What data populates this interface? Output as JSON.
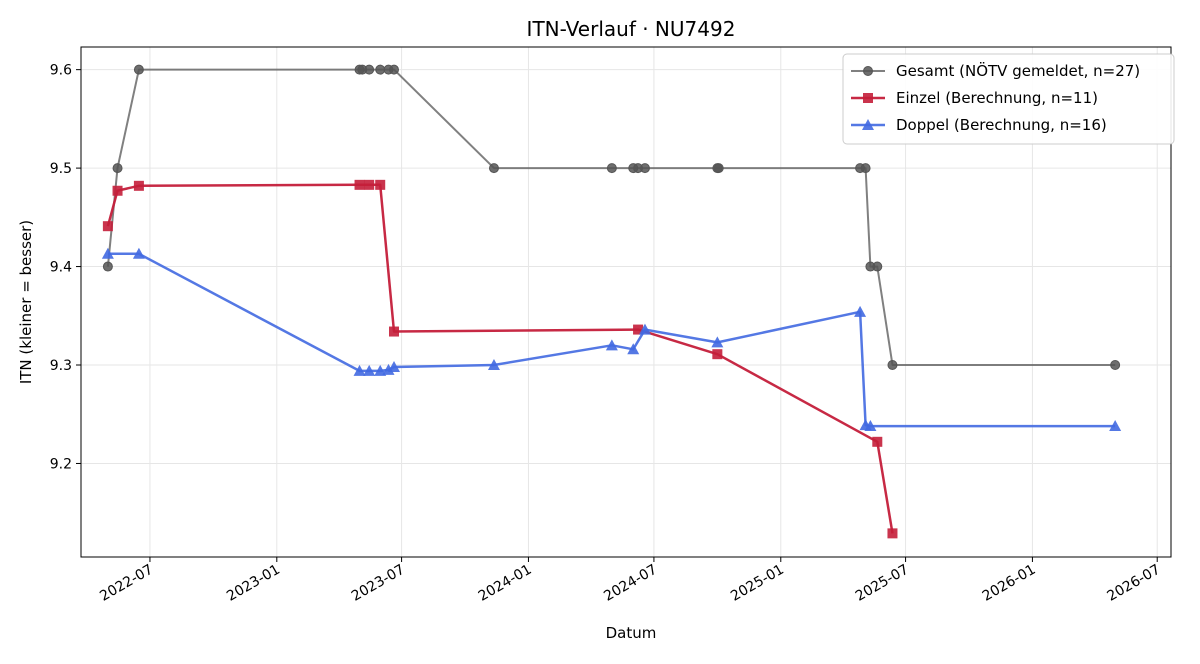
{
  "chart_data": {
    "type": "line",
    "title": "ITN-Verlauf · NU7492",
    "xlabel": "Datum",
    "ylabel": "ITN  (kleiner = besser)",
    "x_axis_type": "date",
    "xlim": [
      "2022-03-23",
      "2026-07-21"
    ],
    "ylim": [
      9.105,
      9.623
    ],
    "x_ticks": [
      "2022-07",
      "2023-01",
      "2023-07",
      "2024-01",
      "2024-07",
      "2025-01",
      "2025-07",
      "2026-01",
      "2026-07"
    ],
    "y_ticks": [
      "9.2",
      "9.3",
      "9.4",
      "9.5",
      "9.6"
    ],
    "grid": true,
    "legend_position": "top-right",
    "series": [
      {
        "name": "Gesamt (NÖTV gemeldet, n=27)",
        "color": "#555555",
        "marker": "circle",
        "points": [
          {
            "x": "2022-05-01",
            "y": 9.4
          },
          {
            "x": "2022-05-15",
            "y": 9.5
          },
          {
            "x": "2022-06-15",
            "y": 9.6
          },
          {
            "x": "2023-05-01",
            "y": 9.6
          },
          {
            "x": "2023-05-05",
            "y": 9.6
          },
          {
            "x": "2023-05-15",
            "y": 9.6
          },
          {
            "x": "2023-05-31",
            "y": 9.6
          },
          {
            "x": "2023-06-12",
            "y": 9.6
          },
          {
            "x": "2023-06-20",
            "y": 9.6
          },
          {
            "x": "2023-11-12",
            "y": 9.5
          },
          {
            "x": "2024-05-01",
            "y": 9.5
          },
          {
            "x": "2024-06-01",
            "y": 9.5
          },
          {
            "x": "2024-06-08",
            "y": 9.5
          },
          {
            "x": "2024-06-18",
            "y": 9.5
          },
          {
            "x": "2024-10-01",
            "y": 9.5
          },
          {
            "x": "2024-10-03",
            "y": 9.5
          },
          {
            "x": "2025-04-26",
            "y": 9.5
          },
          {
            "x": "2025-05-04",
            "y": 9.5
          },
          {
            "x": "2025-05-11",
            "y": 9.4
          },
          {
            "x": "2025-05-21",
            "y": 9.4
          },
          {
            "x": "2025-06-12",
            "y": 9.3
          },
          {
            "x": "2026-05-01",
            "y": 9.3
          }
        ]
      },
      {
        "name": "Einzel (Berechnung, n=11)",
        "color": "#c41e3a",
        "marker": "square",
        "points": [
          {
            "x": "2022-05-01",
            "y": 9.441
          },
          {
            "x": "2022-05-15",
            "y": 9.477
          },
          {
            "x": "2022-06-15",
            "y": 9.482
          },
          {
            "x": "2023-05-01",
            "y": 9.483
          },
          {
            "x": "2023-05-15",
            "y": 9.483
          },
          {
            "x": "2023-05-31",
            "y": 9.483
          },
          {
            "x": "2023-06-20",
            "y": 9.334
          },
          {
            "x": "2024-06-08",
            "y": 9.336
          },
          {
            "x": "2024-10-01",
            "y": 9.311
          },
          {
            "x": "2025-05-21",
            "y": 9.222
          },
          {
            "x": "2025-06-12",
            "y": 9.129
          }
        ]
      },
      {
        "name": "Doppel (Berechnung, n=16)",
        "color": "#4169e1",
        "marker": "triangle",
        "points": [
          {
            "x": "2022-05-01",
            "y": 9.413
          },
          {
            "x": "2022-06-15",
            "y": 9.413
          },
          {
            "x": "2023-05-01",
            "y": 9.294
          },
          {
            "x": "2023-05-15",
            "y": 9.294
          },
          {
            "x": "2023-05-31",
            "y": 9.294
          },
          {
            "x": "2023-06-12",
            "y": 9.295
          },
          {
            "x": "2023-06-20",
            "y": 9.298
          },
          {
            "x": "2023-11-12",
            "y": 9.3
          },
          {
            "x": "2024-05-01",
            "y": 9.32
          },
          {
            "x": "2024-06-01",
            "y": 9.316
          },
          {
            "x": "2024-06-18",
            "y": 9.336
          },
          {
            "x": "2024-10-01",
            "y": 9.323
          },
          {
            "x": "2025-04-26",
            "y": 9.354
          },
          {
            "x": "2025-05-04",
            "y": 9.239
          },
          {
            "x": "2025-05-11",
            "y": 9.238
          },
          {
            "x": "2026-05-01",
            "y": 9.238
          }
        ]
      }
    ]
  }
}
